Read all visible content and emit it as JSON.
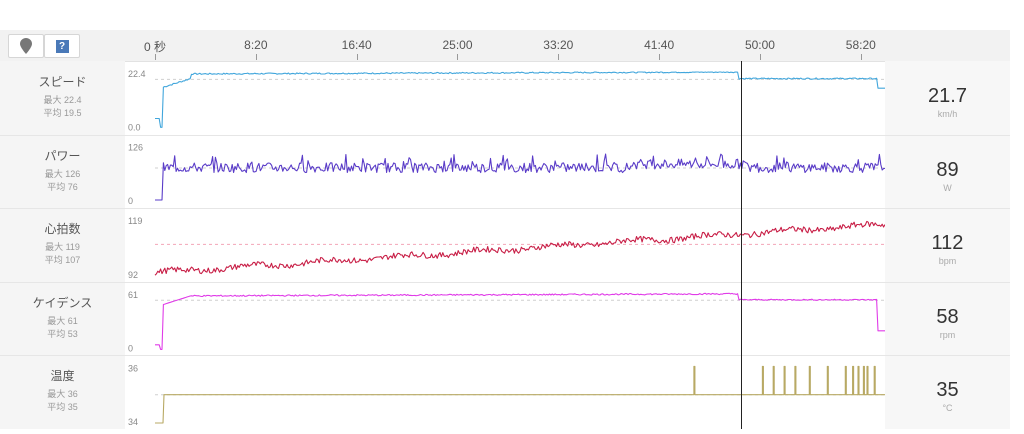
{
  "toolbar": {
    "pin_icon": "map-pin-icon",
    "help_icon": "help-icon",
    "help_glyph": "?"
  },
  "timeline": {
    "labels": [
      {
        "text": "0 秒",
        "seconds": 0
      },
      {
        "text": "8:20",
        "seconds": 500
      },
      {
        "text": "16:40",
        "seconds": 1000
      },
      {
        "text": "25:00",
        "seconds": 1500
      },
      {
        "text": "33:20",
        "seconds": 2000
      },
      {
        "text": "41:40",
        "seconds": 2500
      },
      {
        "text": "50:00",
        "seconds": 3000
      },
      {
        "text": "58:20",
        "seconds": 3500
      }
    ],
    "duration_seconds": 3620,
    "cursor_seconds": 2950
  },
  "rows": [
    {
      "key": "speed",
      "name": "スピード",
      "max_text": "最大 22.4",
      "avg_text": "平均 19.5",
      "value": "21.7",
      "unit": "km/h",
      "ymax_label": "22.4",
      "ymin_label": "0.0",
      "ymin": 0,
      "ymax": 22.4,
      "avg": 19.5,
      "color": "#41a6dc"
    },
    {
      "key": "power",
      "name": "パワー",
      "max_text": "最大 126",
      "avg_text": "平均 76",
      "value": "89",
      "unit": "W",
      "ymax_label": "126",
      "ymin_label": "0",
      "ymin": 0,
      "ymax": 126,
      "avg": 76,
      "color": "#5a3cc8"
    },
    {
      "key": "hr",
      "name": "心拍数",
      "max_text": "最大 119",
      "avg_text": "平均 107",
      "value": "112",
      "unit": "bpm",
      "ymax_label": "119",
      "ymin_label": "92",
      "ymin": 92,
      "ymax": 119,
      "avg": 107,
      "color": "#c81e46"
    },
    {
      "key": "cadence",
      "name": "ケイデンス",
      "max_text": "最大 61",
      "avg_text": "平均 53",
      "value": "58",
      "unit": "rpm",
      "ymax_label": "61",
      "ymin_label": "0",
      "ymin": 0,
      "ymax": 61,
      "avg": 53,
      "color": "#e03ce8"
    },
    {
      "key": "temp",
      "name": "温度",
      "max_text": "最大 36",
      "avg_text": "平均 35",
      "value": "35",
      "unit": "°C",
      "ymax_label": "36",
      "ymin_label": "34",
      "ymin": 34,
      "ymax": 36,
      "avg": 35,
      "color": "#b8a964"
    }
  ]
}
